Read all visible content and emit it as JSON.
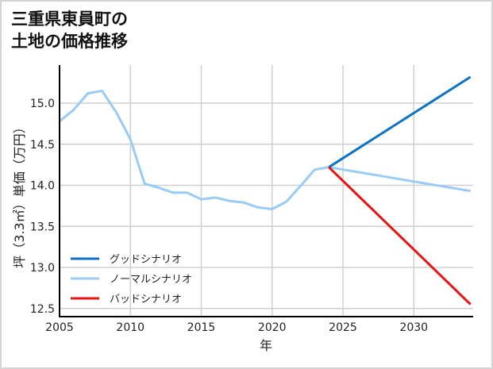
{
  "title_lines": [
    "三重県東員町の",
    "土地の価格推移"
  ],
  "chart_data": {
    "type": "line",
    "title": "三重県東員町の土地の価格推移",
    "xlabel": "年",
    "ylabel": "坪（3.3㎡）単価（万円）",
    "xlim": [
      2005,
      2034
    ],
    "ylim": [
      12.4,
      15.5
    ],
    "xticks": [
      2005,
      2010,
      2015,
      2020,
      2025,
      2030
    ],
    "yticks": [
      12.5,
      13.0,
      13.5,
      14.0,
      14.5,
      15.0
    ],
    "ytick_labels": [
      "12.5",
      "13.0",
      "13.5",
      "14.0",
      "14.5",
      "15.0"
    ],
    "grid": true,
    "legend_position": "lower left",
    "series": [
      {
        "name": "グッドシナリオ",
        "color": "#0b72c8",
        "x": [
          2024,
          2034
        ],
        "values": [
          14.22,
          15.32
        ]
      },
      {
        "name": "ノーマルシナリオ",
        "color": "#99cbf7",
        "x": [
          2005,
          2006,
          2007,
          2008,
          2009,
          2010,
          2011,
          2012,
          2013,
          2014,
          2015,
          2016,
          2017,
          2018,
          2019,
          2020,
          2021,
          2022,
          2023,
          2024,
          2034
        ],
        "values": [
          14.78,
          14.92,
          15.12,
          15.15,
          14.89,
          14.56,
          14.02,
          13.97,
          13.91,
          13.91,
          13.83,
          13.85,
          13.81,
          13.79,
          13.73,
          13.71,
          13.8,
          13.99,
          14.19,
          14.22,
          13.93
        ]
      },
      {
        "name": "バッドシナリオ",
        "color": "#ee1111",
        "x": [
          2024,
          2034
        ],
        "values": [
          14.22,
          12.55
        ]
      }
    ]
  }
}
